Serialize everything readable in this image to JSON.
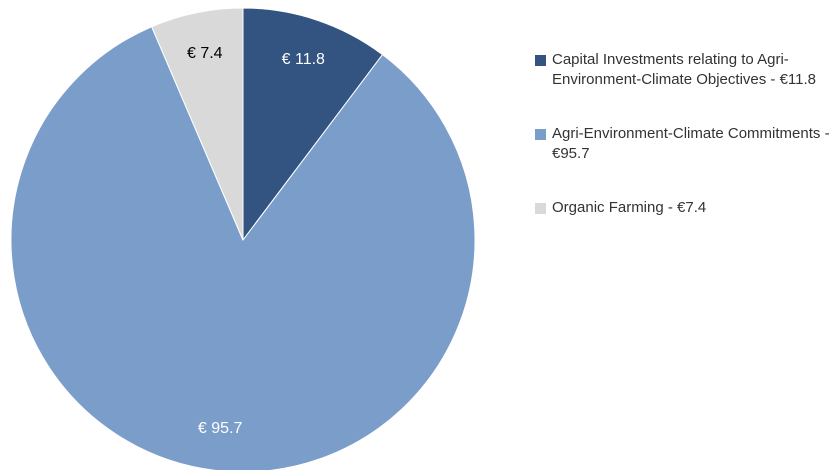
{
  "chart_data": {
    "type": "pie",
    "categories": [
      "Capital Investments relating to Agri-Environment-Climate Objectives - €11.8",
      "Agri-Environment-Climate Commitments - €95.7",
      "Organic Farming - €7.4"
    ],
    "values": [
      11.8,
      95.7,
      7.4
    ],
    "value_labels": [
      "€ 11.8",
      "€ 95.7",
      "€ 7.4"
    ],
    "colors": [
      "#335481",
      "#7b9dca",
      "#d9d9d9"
    ],
    "legend": "right"
  }
}
